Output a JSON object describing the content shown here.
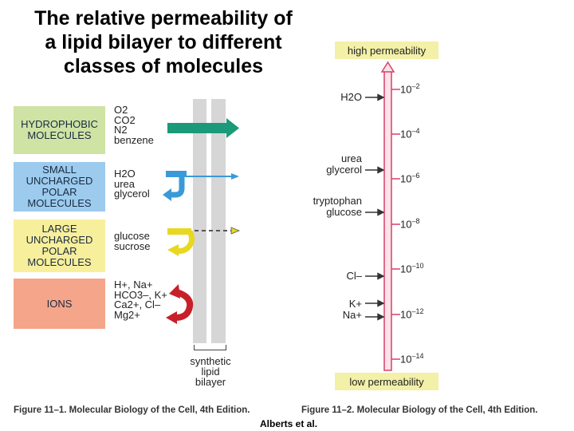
{
  "title_lines": [
    "The relative permeability of",
    "a lipid bilayer to different",
    "classes of molecules"
  ],
  "classes": [
    {
      "label_lines": [
        "HYDROPHOBIC",
        "MOLECULES"
      ],
      "color": "#cfe3a5",
      "molecules": [
        "O2",
        "CO2",
        "N2",
        "benzene"
      ]
    },
    {
      "label_lines": [
        "SMALL",
        "UNCHARGED",
        "POLAR",
        "MOLECULES"
      ],
      "color": "#9ccbee",
      "molecules": [
        "H2O",
        "urea",
        "glycerol"
      ]
    },
    {
      "label_lines": [
        "LARGE",
        "UNCHARGED",
        "POLAR",
        "MOLECULES"
      ],
      "color": "#f7ef9c",
      "molecules": [
        "glucose",
        "sucrose"
      ]
    },
    {
      "label_lines": [
        "IONS"
      ],
      "color": "#f4a58a",
      "molecules": [
        "H+, Na+",
        "HCO3–, K+",
        "Ca2+, Cl–",
        "Mg2+"
      ]
    }
  ],
  "bilayer_label_lines": [
    "synthetic",
    "lipid",
    "bilayer"
  ],
  "scale": {
    "high_label": "high permeability",
    "low_label": "low permeability",
    "tick_exponents": [
      "–2",
      "–4",
      "–6",
      "–8",
      "–10",
      "–12",
      "–14"
    ],
    "tick_base": "10",
    "molecules": [
      {
        "lines": [
          "H2O"
        ]
      },
      {
        "lines": [
          "urea",
          "glycerol"
        ]
      },
      {
        "lines": [
          "tryptophan",
          "glucose"
        ]
      },
      {
        "lines": [
          "Cl–"
        ]
      },
      {
        "lines": [
          "K+",
          "Na+"
        ]
      }
    ]
  },
  "captions": {
    "left": "Figure 11–1. Molecular Biology of the Cell, 4th Edition.",
    "right": "Figure 11–2. Molecular Biology of the Cell, 4th Edition."
  },
  "author": "Alberts et al.",
  "colors": {
    "arrow_green": "#1a9a78",
    "arrow_blue": "#3a9ad8",
    "arrow_yellow": "#e8d820",
    "arrow_red": "#c8202a",
    "scale_line": "#d8406a",
    "scale_fill": "#fbe3ea"
  }
}
